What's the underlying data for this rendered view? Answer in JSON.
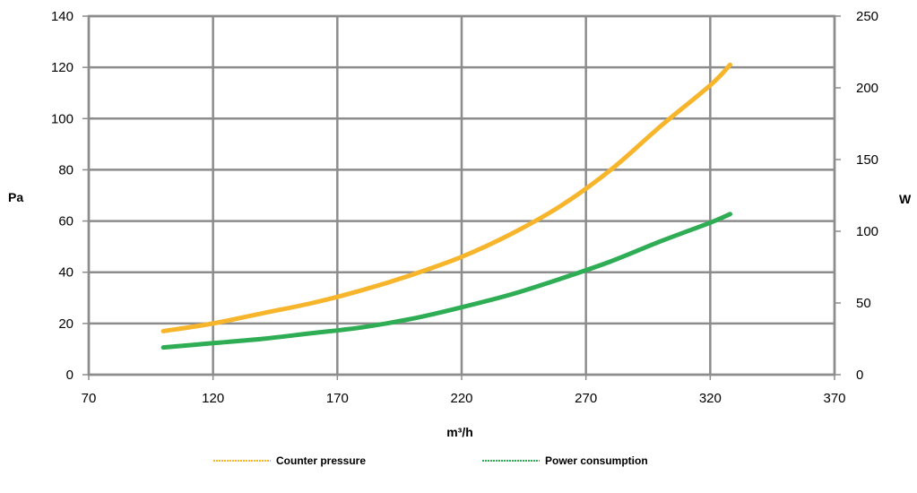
{
  "chart_data": {
    "type": "line",
    "title": "",
    "xlabel": "m³/h",
    "ylabel_left": "Pa",
    "ylabel_right": "W",
    "xlim": [
      70,
      370
    ],
    "xticks": [
      70,
      120,
      170,
      220,
      270,
      320,
      370
    ],
    "ylim_left": [
      0,
      140
    ],
    "yticks_left": [
      0,
      20,
      40,
      60,
      80,
      100,
      120,
      140
    ],
    "ylim_right": [
      0,
      250
    ],
    "yticks_right": [
      0,
      50,
      100,
      150,
      200,
      250
    ],
    "grid": true,
    "legend_position": "bottom",
    "series": [
      {
        "name": "Counter pressure",
        "axis": "left",
        "color": "#F7B52C",
        "x": [
          100,
          120,
          140,
          160,
          180,
          200,
          220,
          240,
          260,
          280,
          300,
          320,
          328
        ],
        "y": [
          17,
          20,
          24,
          28,
          33,
          39,
          46,
          55,
          66,
          80,
          97,
          113,
          121
        ]
      },
      {
        "name": "Power consumption",
        "axis": "right",
        "color": "#2EAD55",
        "x": [
          100,
          120,
          140,
          160,
          180,
          200,
          220,
          240,
          260,
          280,
          300,
          320,
          328
        ],
        "y": [
          19,
          22,
          25,
          29,
          33,
          39,
          47,
          56,
          67,
          79,
          93,
          106,
          112
        ]
      }
    ]
  }
}
